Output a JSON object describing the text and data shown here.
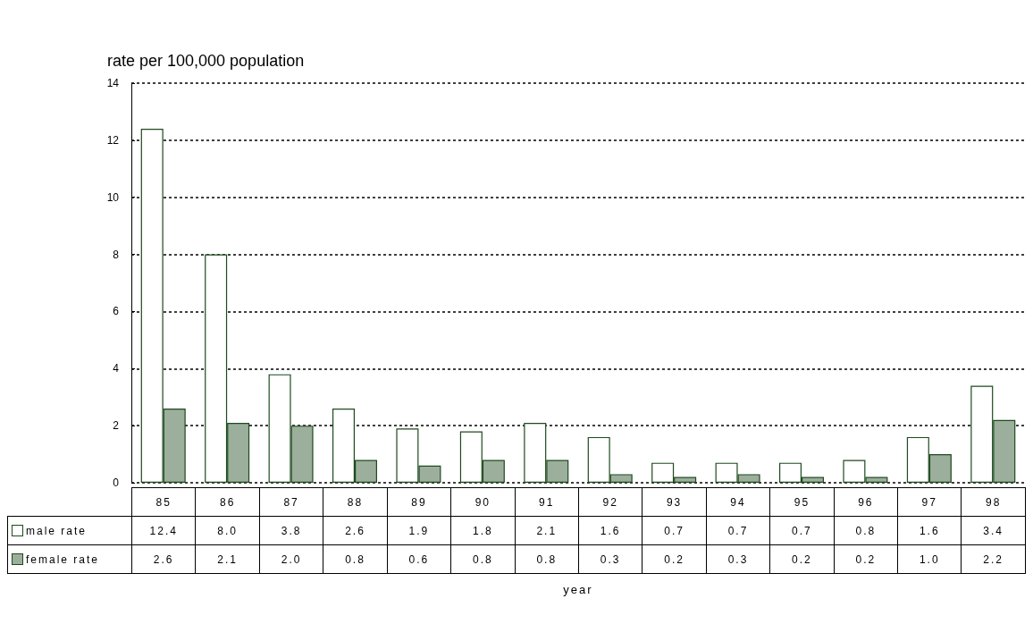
{
  "chart_data": {
    "type": "bar",
    "title": "rate per 100,000 population",
    "annotations": [
      "year"
    ],
    "categories": [
      "85",
      "86",
      "87",
      "88",
      "89",
      "90",
      "91",
      "92",
      "93",
      "94",
      "95",
      "96",
      "97",
      "98"
    ],
    "series": [
      {
        "name": "male rate",
        "color": "#ffffff",
        "values": [
          12.4,
          8.0,
          3.8,
          2.6,
          1.9,
          1.8,
          2.1,
          1.6,
          0.7,
          0.7,
          0.7,
          0.8,
          1.6,
          3.4
        ],
        "value_labels": [
          "12.4",
          "8.0",
          "3.8",
          "2.6",
          "1.9",
          "1.8",
          "2.1",
          "1.6",
          "0.7",
          "0.7",
          "0.7",
          "0.8",
          "1.6",
          "3.4"
        ]
      },
      {
        "name": "female rate",
        "color": "#9caf9c",
        "values": [
          2.6,
          2.1,
          2.0,
          0.8,
          0.6,
          0.8,
          0.8,
          0.3,
          0.2,
          0.3,
          0.2,
          0.2,
          1.0,
          2.2
        ],
        "value_labels": [
          "2.6",
          "2.1",
          "2.0",
          "0.8",
          "0.6",
          "0.8",
          "0.8",
          "0.3",
          "0.2",
          "0.3",
          "0.2",
          "0.2",
          "1.0",
          "2.2"
        ]
      }
    ],
    "ylim": [
      0,
      14
    ],
    "yticks": [
      0,
      2,
      4,
      6,
      8,
      10,
      12,
      14
    ],
    "grid": "y",
    "legend": "bottom left"
  }
}
